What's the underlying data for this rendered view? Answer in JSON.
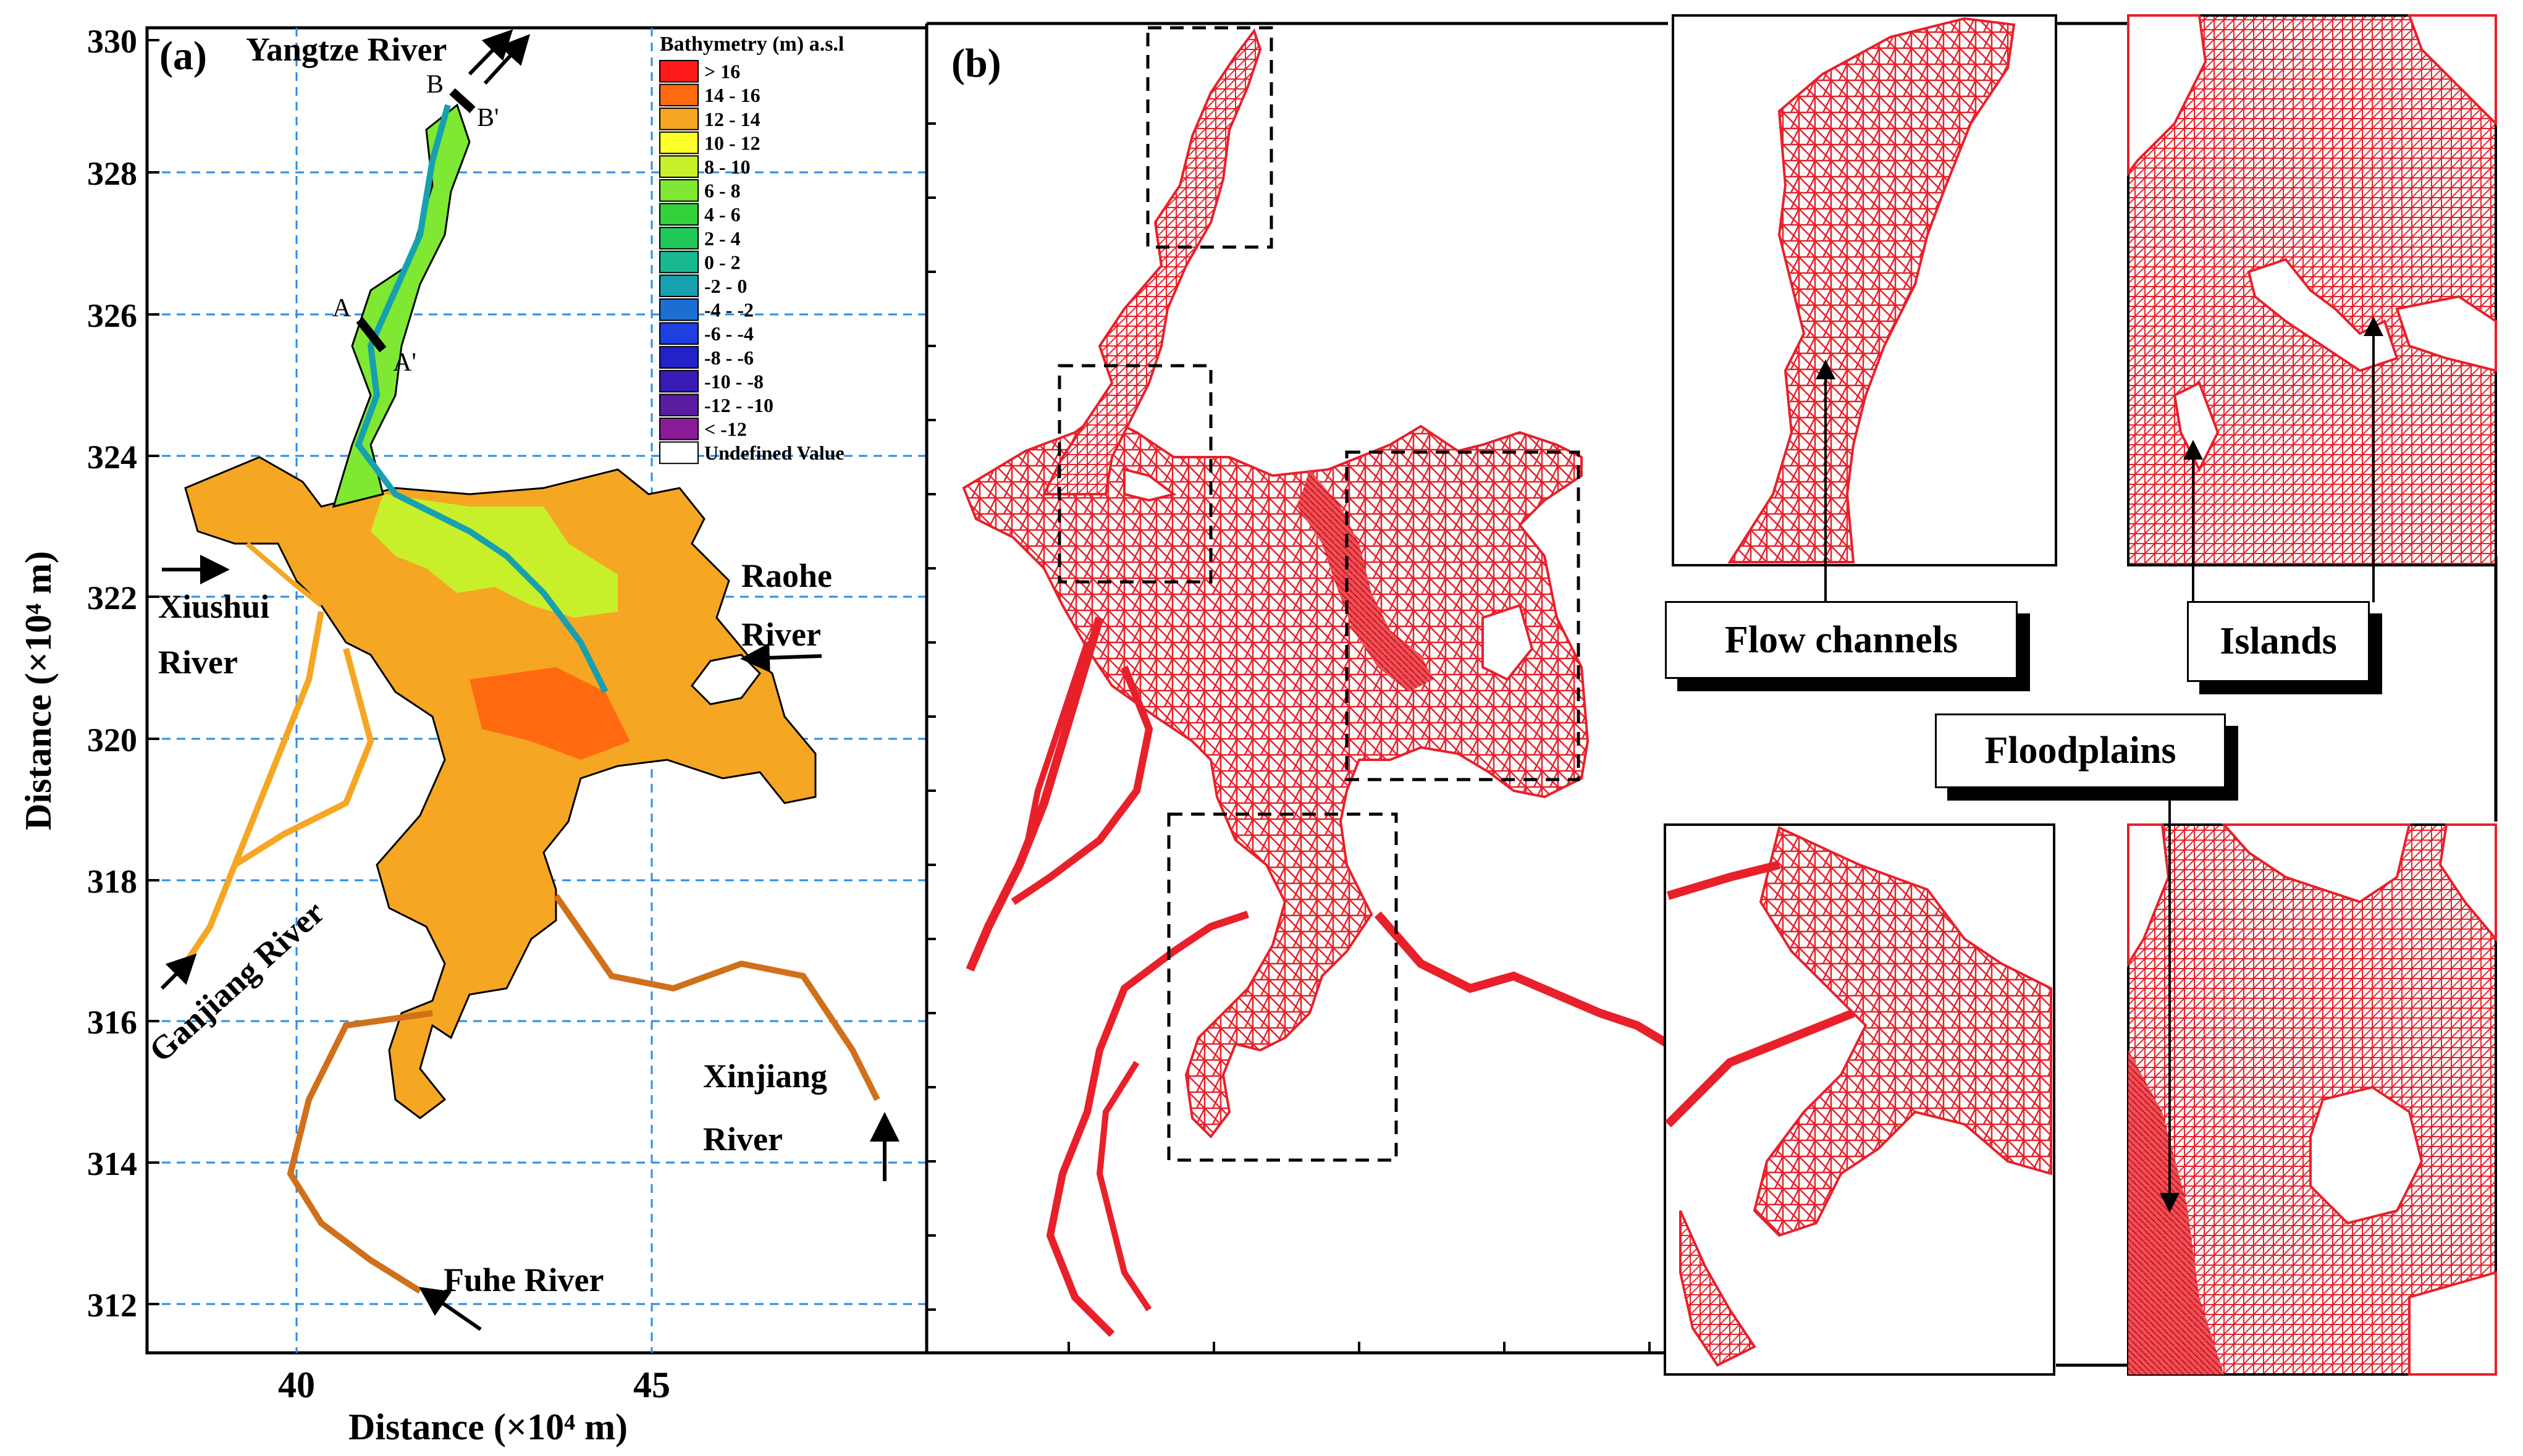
{
  "panel_a": {
    "label": "(a)",
    "y_axis": {
      "title": "Distance (×10⁴ m)",
      "ticks": [
        "330",
        "328",
        "326",
        "324",
        "322",
        "320",
        "318",
        "316",
        "314",
        "312"
      ]
    },
    "x_axis": {
      "title": "Distance (×10⁴ m)",
      "ticks": [
        "40",
        "45"
      ]
    },
    "legend": {
      "title": "Bathymetry (m) a.s.l",
      "items": [
        {
          "label": ">  16",
          "color": "#ff1a1a"
        },
        {
          "label": "14 -  16",
          "color": "#ff6a10"
        },
        {
          "label": "12 -  14",
          "color": "#f5a623"
        },
        {
          "label": "10 -  12",
          "color": "#ffff2a"
        },
        {
          "label": "8 -  10",
          "color": "#c8f02a"
        },
        {
          "label": "6 -   8",
          "color": "#7ee832"
        },
        {
          "label": "4 -   6",
          "color": "#34d23a"
        },
        {
          "label": "2 -   4",
          "color": "#20c858"
        },
        {
          "label": "0 -   2",
          "color": "#18b890"
        },
        {
          "label": "-2 -   0",
          "color": "#17a0b0"
        },
        {
          "label": "-4 -  -2",
          "color": "#1c6fd0"
        },
        {
          "label": "-6 -  -4",
          "color": "#1f3fe0"
        },
        {
          "label": "-8 -  -6",
          "color": "#2222c8"
        },
        {
          "label": "-10 -  -8",
          "color": "#3a1cb4"
        },
        {
          "label": "-12 - -10",
          "color": "#5a1ca0"
        },
        {
          "label": "< -12",
          "color": "#8a1c9a"
        },
        {
          "label": "Undefined Value",
          "color": "#ffffff"
        }
      ]
    },
    "labels": {
      "yangtze": "Yangtze River",
      "b": "B",
      "b_prime": "B'",
      "a": "A",
      "a_prime": "A'",
      "xiushui_1": "Xiushui",
      "xiushui_2": "River",
      "raohe_1": "Raohe",
      "raohe_2": "River",
      "ganjiang": "Ganjiang River",
      "xinjiang_1": "Xinjiang",
      "xinjiang_2": "River",
      "fuhe": "Fuhe  River"
    }
  },
  "panel_b": {
    "label": "(b)"
  },
  "callouts": {
    "flow_channels": "Flow channels",
    "islands": "Islands",
    "floodplains": "Floodplains"
  }
}
